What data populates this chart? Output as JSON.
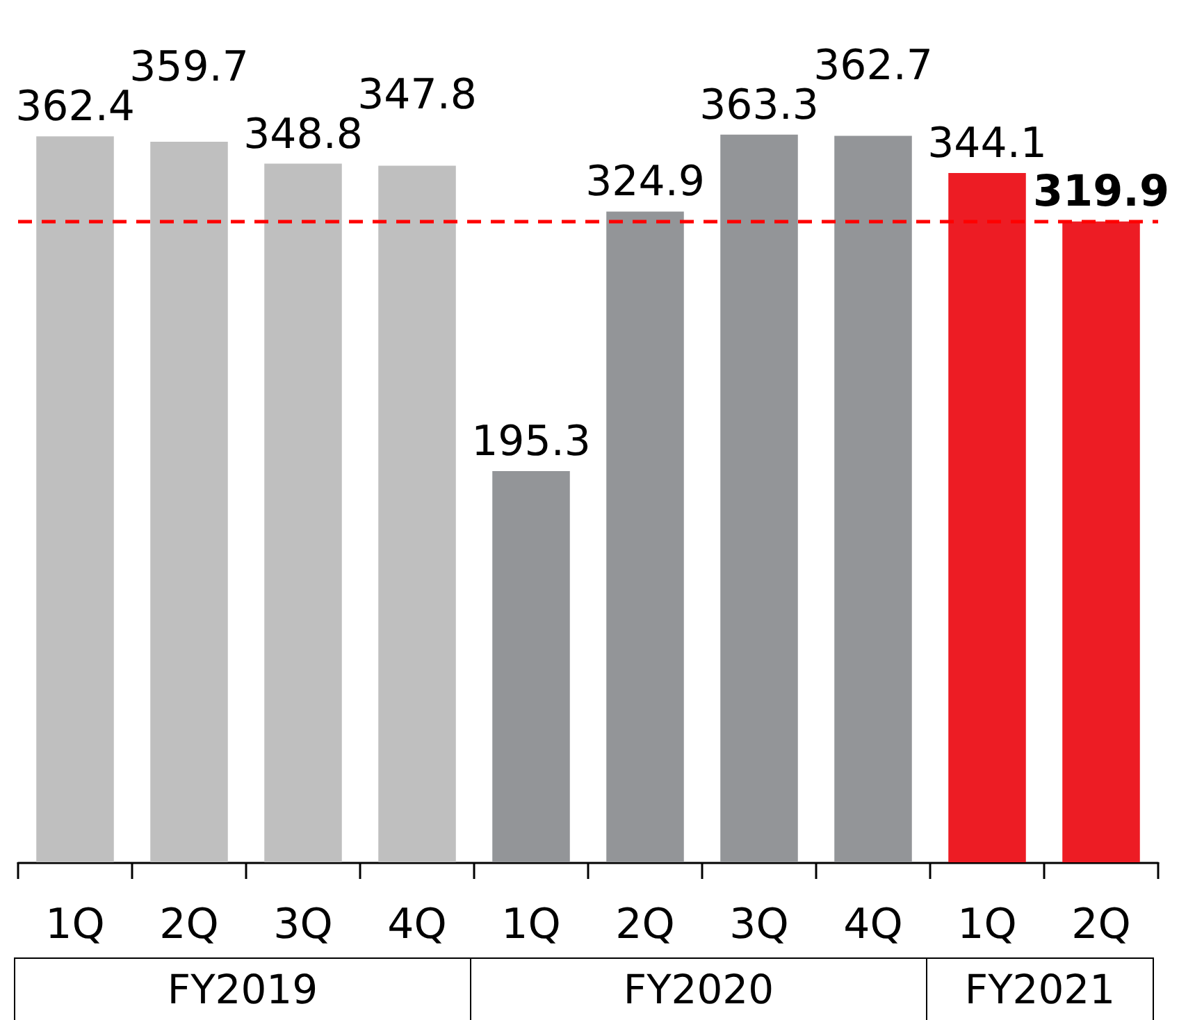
{
  "chart_data": {
    "type": "bar",
    "categories": [
      "1Q",
      "2Q",
      "3Q",
      "4Q",
      "1Q",
      "2Q",
      "3Q",
      "4Q",
      "1Q",
      "2Q"
    ],
    "series": [
      {
        "name": "FY2019",
        "color": "#bfbfbf",
        "values": [
          362.4,
          359.7,
          348.8,
          347.8,
          null,
          null,
          null,
          null,
          null,
          null
        ]
      },
      {
        "name": "FY2020",
        "color": "#939598",
        "values": [
          null,
          null,
          null,
          null,
          195.3,
          324.9,
          363.3,
          362.7,
          null,
          null
        ]
      },
      {
        "name": "FY2021",
        "color": "#ed1c24",
        "values": [
          null,
          null,
          null,
          null,
          null,
          null,
          null,
          null,
          344.1,
          319.9
        ]
      }
    ],
    "data_labels": true,
    "tick_labels": "x",
    "ref_lines": [
      {
        "axis": "y",
        "value": 319.9,
        "color": "#ff0000",
        "line_style": "dashed"
      }
    ]
  }
}
